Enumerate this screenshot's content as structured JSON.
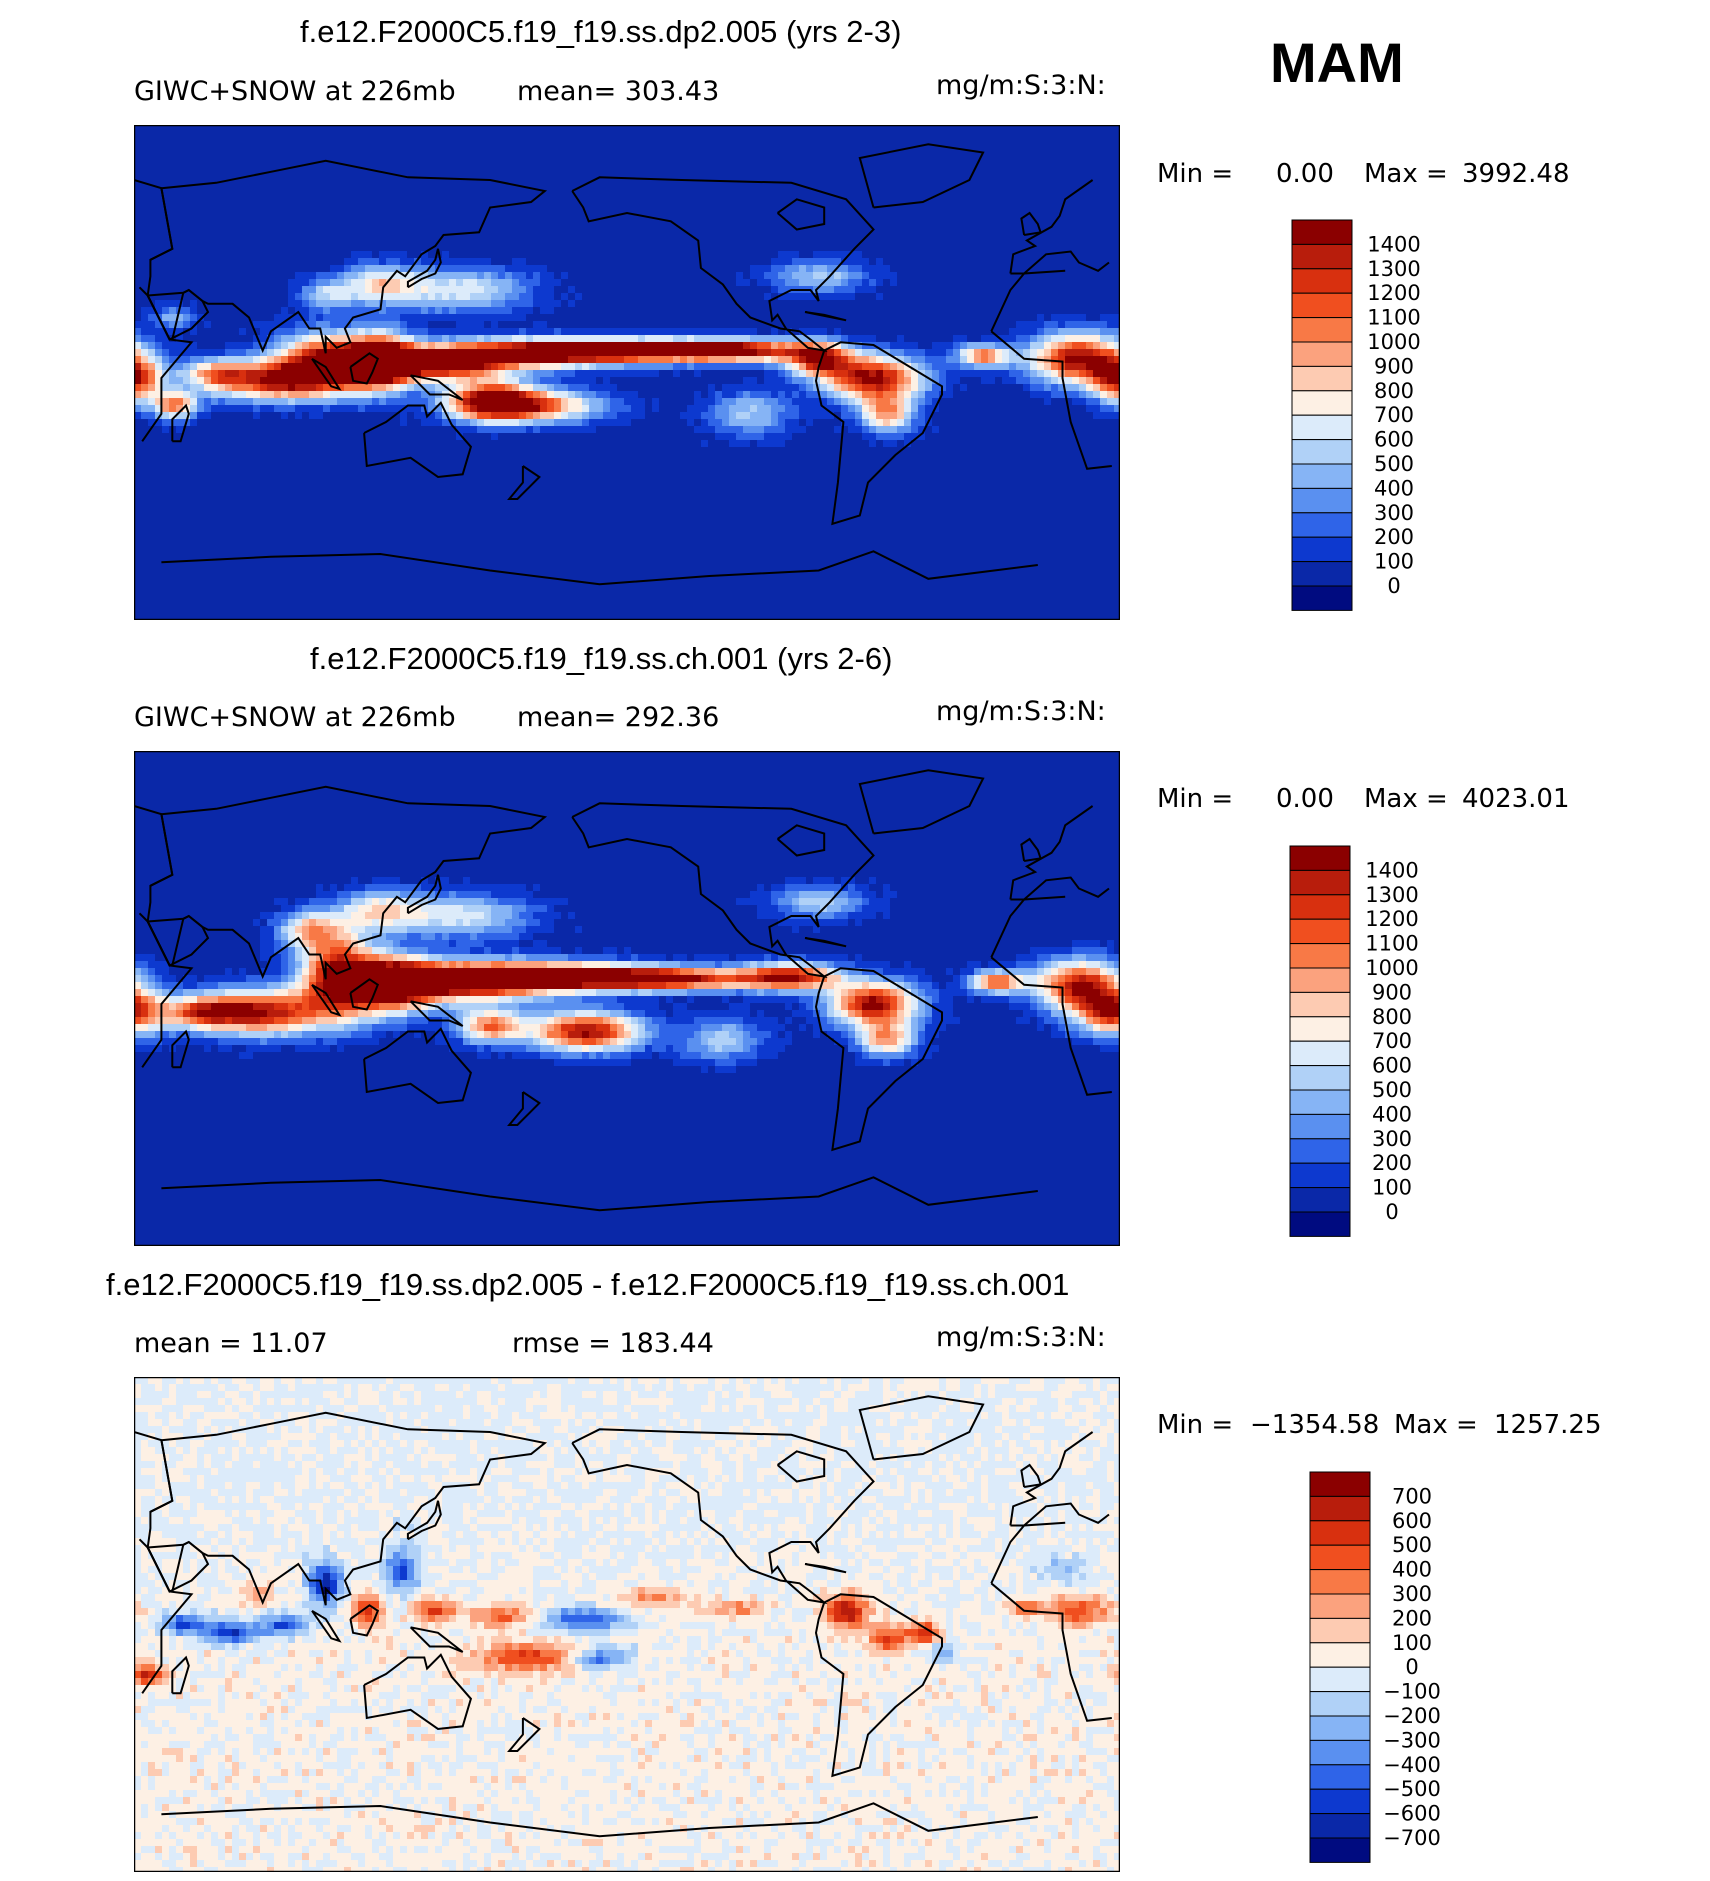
{
  "season": "MAM",
  "panels": [
    {
      "title": "f.e12.F2000C5.f19_f19.ss.dp2.005 (yrs 2-3)",
      "left_text": "GIWC+SNOW at 226mb",
      "mid_text": "mean= 303.43",
      "units": "mg/m:S:3:N:",
      "min_label": "Min =",
      "min_value": "0.00",
      "max_label": "Max =",
      "max_value": "3992.48",
      "field": "mean"
    },
    {
      "title": "f.e12.F2000C5.f19_f19.ss.ch.001 (yrs 2-6)",
      "left_text": "GIWC+SNOW at 226mb",
      "mid_text": "mean= 292.36",
      "units": "mg/m:S:3:N:",
      "min_label": "Min =",
      "min_value": "0.00",
      "max_label": "Max =",
      "max_value": "4023.01",
      "field": "mean"
    },
    {
      "title": "f.e12.F2000C5.f19_f19.ss.dp2.005 - f.e12.F2000C5.f19_f19.ss.ch.001",
      "left_text": "mean =   11.07",
      "mid_text": "rmse = 183.44",
      "units": "mg/m:S:3:N:",
      "min_label": "Min =",
      "min_value": "−1354.58",
      "max_label": "Max =",
      "max_value": "1257.25",
      "field": "diff"
    }
  ],
  "chart_data": [
    {
      "type": "heatmap",
      "title": "f.e12.F2000C5.f19_f19.ss.dp2.005 (yrs 2-3)",
      "variable": "GIWC+SNOW at 226mb",
      "units": "mg/m:S:3:N:",
      "mean": 303.43,
      "min": 0.0,
      "max": 3992.48,
      "colorbar_levels": [
        "1400",
        "1300",
        "1200",
        "1100",
        "1000",
        "900",
        "800",
        "700",
        "600",
        "500",
        "400",
        "300",
        "200",
        "100",
        "0"
      ],
      "colors": [
        "#8b0000",
        "#b81d0c",
        "#d8300f",
        "#f04f1f",
        "#f87946",
        "#fba27e",
        "#fdcbb2",
        "#fdf0e4",
        "#dcebfa",
        "#b0d1f7",
        "#86b4f5",
        "#5a90f0",
        "#2f64e8",
        "#0d39cf",
        "#0a28a8",
        "#000b80"
      ]
    },
    {
      "type": "heatmap",
      "title": "f.e12.F2000C5.f19_f19.ss.ch.001 (yrs 2-6)",
      "variable": "GIWC+SNOW at 226mb",
      "units": "mg/m:S:3:N:",
      "mean": 292.36,
      "min": 0.0,
      "max": 4023.01,
      "colorbar_levels": [
        "1400",
        "1300",
        "1200",
        "1100",
        "1000",
        "900",
        "800",
        "700",
        "600",
        "500",
        "400",
        "300",
        "200",
        "100",
        "0"
      ],
      "colors": [
        "#8b0000",
        "#b81d0c",
        "#d8300f",
        "#f04f1f",
        "#f87946",
        "#fba27e",
        "#fdcbb2",
        "#fdf0e4",
        "#dcebfa",
        "#b0d1f7",
        "#86b4f5",
        "#5a90f0",
        "#2f64e8",
        "#0d39cf",
        "#0a28a8",
        "#000b80"
      ]
    },
    {
      "type": "heatmap",
      "title": "f.e12.F2000C5.f19_f19.ss.dp2.005 - f.e12.F2000C5.f19_f19.ss.ch.001",
      "units": "mg/m:S:3:N:",
      "mean": 11.07,
      "rmse": 183.44,
      "min": -1354.58,
      "max": 1257.25,
      "colorbar_levels": [
        "700",
        "600",
        "500",
        "400",
        "300",
        "200",
        "100",
        "0",
        "−100",
        "−200",
        "−300",
        "−400",
        "−500",
        "−600",
        "−700"
      ],
      "colors": [
        "#8b0000",
        "#b81d0c",
        "#d8300f",
        "#f04f1f",
        "#f87946",
        "#fba27e",
        "#fdcbb2",
        "#fdf0e4",
        "#dcebfa",
        "#b0d1f7",
        "#86b4f5",
        "#5a90f0",
        "#2f64e8",
        "#0d39cf",
        "#0a28a8",
        "#000b80"
      ]
    }
  ]
}
